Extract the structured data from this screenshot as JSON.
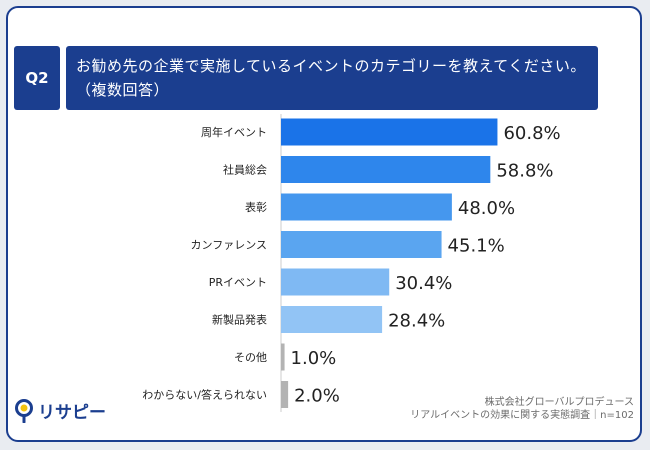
{
  "question": {
    "badge": "Q2",
    "text": "お勧め先の企業で実施しているイベントのカテゴリーを教えてください。（複数回答）"
  },
  "chart_data": {
    "type": "bar",
    "orientation": "horizontal",
    "title": "",
    "xlabel": "",
    "ylabel": "",
    "unit": "%",
    "xlim": [
      0,
      100
    ],
    "grid": false,
    "categories": [
      "周年イベント",
      "社員総会",
      "表彰",
      "カンファレンス",
      "PRイベント",
      "新製品発表",
      "その他",
      "わからない/答えられない"
    ],
    "values": [
      60.8,
      58.8,
      48.0,
      45.1,
      30.4,
      28.4,
      1.0,
      2.0
    ],
    "value_labels": [
      "60.8%",
      "58.8%",
      "48.0%",
      "45.1%",
      "30.4%",
      "28.4%",
      "1.0%",
      "2.0%"
    ],
    "colors": [
      "#1a73e8",
      "#2e86ec",
      "#4597ee",
      "#5aa5f0",
      "#7fb9f3",
      "#92c4f5",
      "#b3b3b3",
      "#b3b3b3"
    ]
  },
  "footer": {
    "line1": "株式会社グローバルプロデュース",
    "line2": "リアルイベントの効果に関する実態調査｜n=102"
  },
  "logo": {
    "text": "リサピー",
    "icon": "lightbulb-pin-icon",
    "colors": [
      "#1b3e8f",
      "#f4c20d"
    ]
  }
}
